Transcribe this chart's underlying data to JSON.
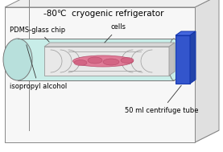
{
  "title": "-80℃  cryogenic refrigerator",
  "title_fontsize": 7.5,
  "bg_color": "#ffffff",
  "box_edge_color": "#888888",
  "box_front_color": "#f7f7f7",
  "box_top_color": "#eeeeee",
  "box_right_color": "#e0e0e0",
  "box_bottom_color": "#d8d8d8",
  "tube_fill_color": "#c8ede8",
  "tube_edge_color": "#777777",
  "chip_top_color": "#d8d8d8",
  "chip_face_color": "#e8e8e8",
  "chip_edge_color": "#999999",
  "chip_side_color": "#c0c0c0",
  "cell_fill_color": "#e07090",
  "cell_edge_color": "#b04060",
  "cap_front_color": "#3355cc",
  "cap_top_color": "#4466dd",
  "cap_right_color": "#2244aa",
  "cap_edge_color": "#1133aa",
  "label_PDMS": "PDMS-glass chip",
  "label_cells": "cells",
  "label_alcohol": "isopropyl alcohol",
  "label_tube": "50 ml centrifuge tube",
  "label_fontsize": 6.0,
  "line_color": "#333333"
}
